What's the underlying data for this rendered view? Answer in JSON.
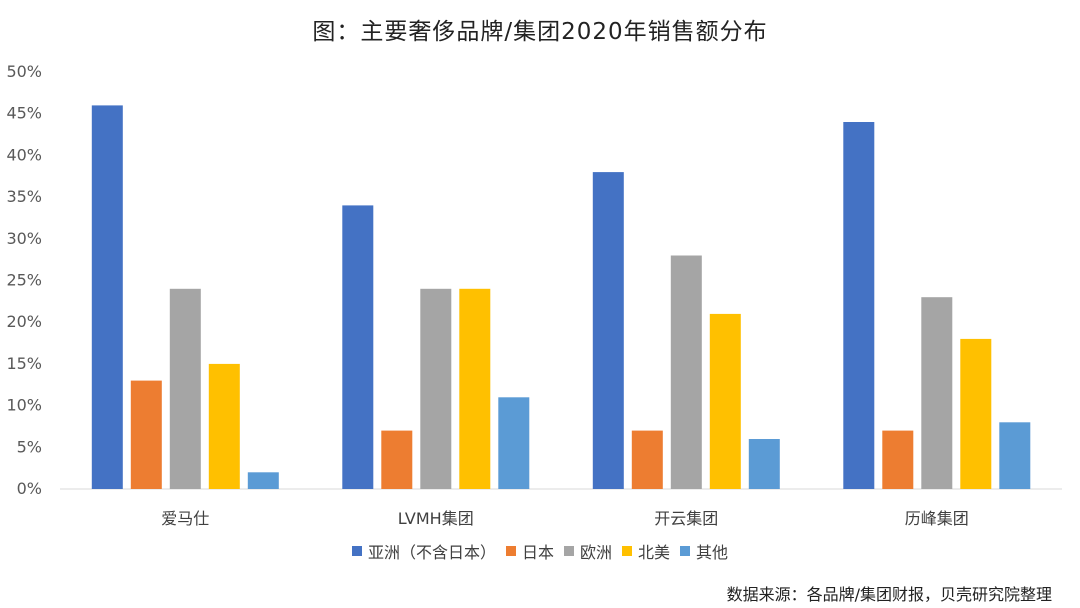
{
  "title": "图：主要奢侈品牌/集团2020年销售额分布",
  "source": "数据来源：各品牌/集团财报，贝壳研究院整理",
  "colors": [
    "#4472C4",
    "#ED7D31",
    "#A5A5A5",
    "#FFC000",
    "#5B9BD5"
  ],
  "chart_data": {
    "type": "bar",
    "title": "图：主要奢侈品牌/集团2020年销售额分布",
    "xlabel": "",
    "ylabel": "",
    "ylim": [
      0,
      50
    ],
    "y_ticks": [
      "0%",
      "5%",
      "10%",
      "15%",
      "20%",
      "25%",
      "30%",
      "35%",
      "40%",
      "45%",
      "50%"
    ],
    "categories": [
      "爱马仕",
      "LVMH集团",
      "开云集团",
      "历峰集团"
    ],
    "series": [
      {
        "name": "亚洲（不含日本）",
        "values": [
          46,
          34,
          38,
          44
        ]
      },
      {
        "name": "日本",
        "values": [
          13,
          7,
          7,
          7
        ]
      },
      {
        "name": "欧洲",
        "values": [
          24,
          24,
          28,
          23
        ]
      },
      {
        "name": "北美",
        "values": [
          15,
          24,
          21,
          18
        ]
      },
      {
        "name": "其他",
        "values": [
          2,
          11,
          6,
          8
        ]
      }
    ],
    "grid": false,
    "legend_position": "bottom"
  }
}
